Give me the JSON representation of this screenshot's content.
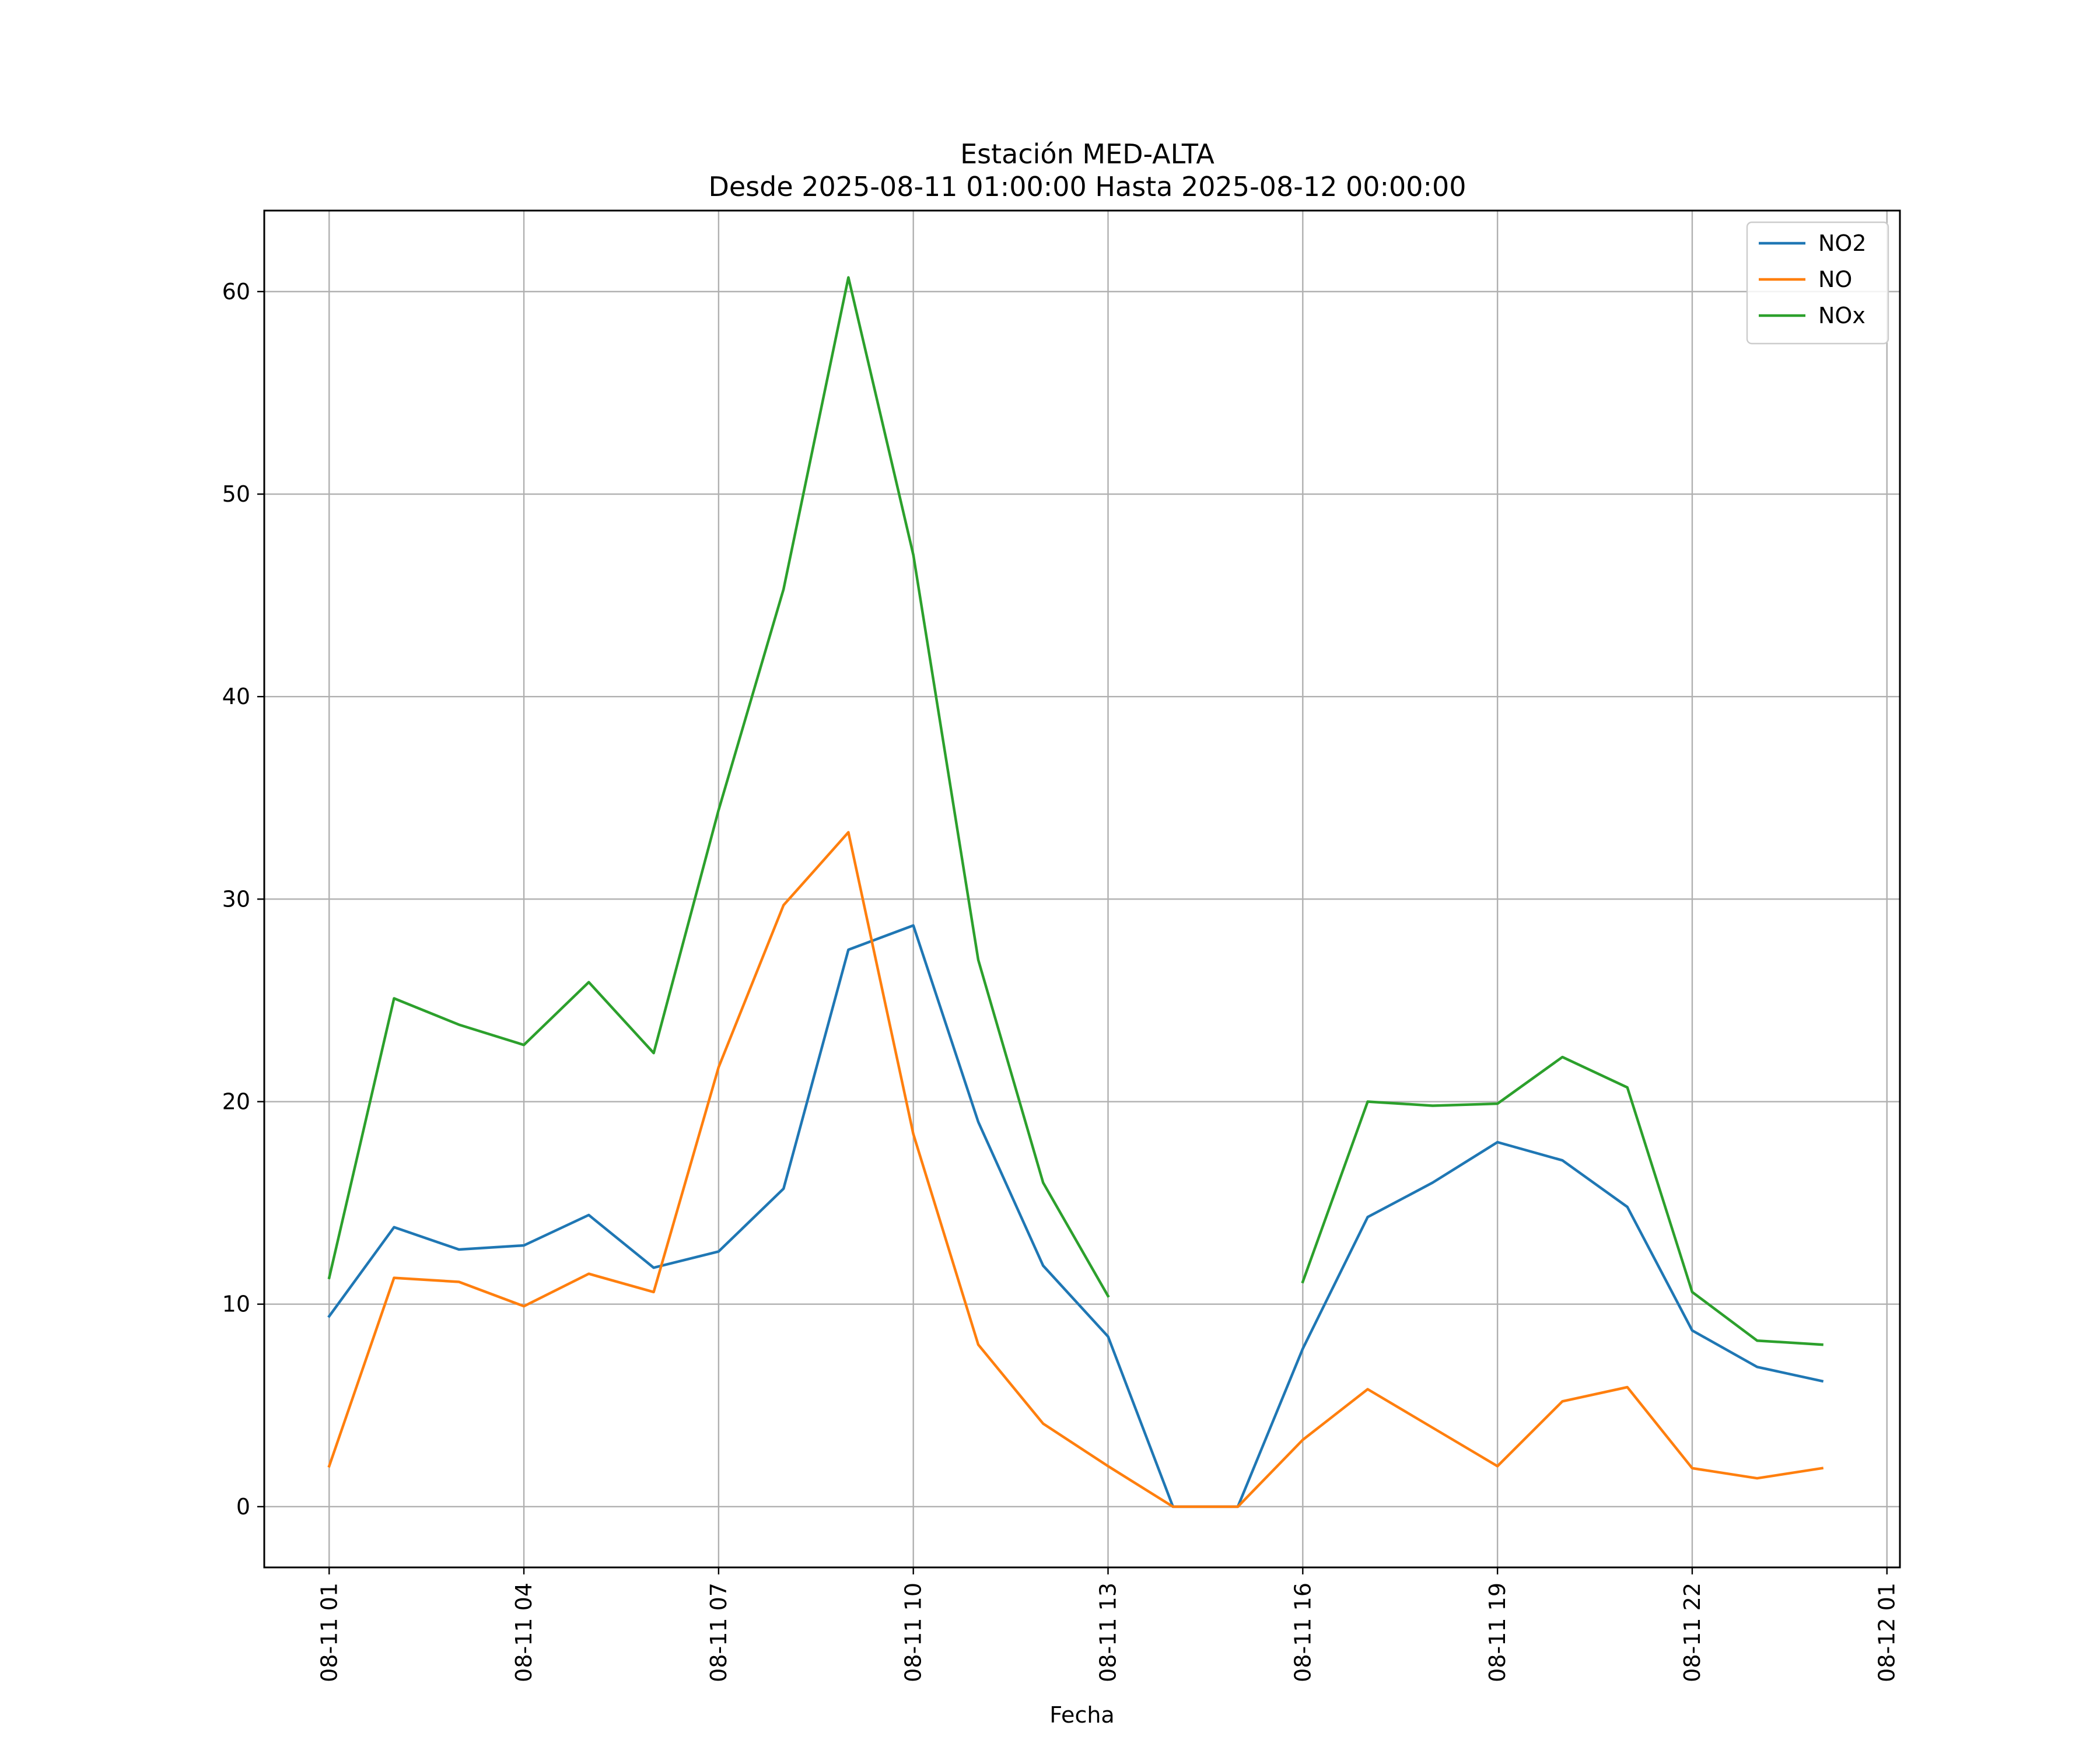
{
  "chart_data": {
    "type": "line",
    "title": "Estación MED-ALTA",
    "subtitle": "Desde 2025-08-11 01:00:00 Hasta 2025-08-12 00:00:00",
    "xlabel": "Fecha",
    "ylabel": "",
    "ylim": [
      -3,
      64
    ],
    "xlim": [
      "2025-08-11 00:00",
      "2025-08-12 01:12"
    ],
    "grid": true,
    "legend_position": "top-right",
    "x": [
      "2025-08-11 01:00",
      "2025-08-11 02:00",
      "2025-08-11 03:00",
      "2025-08-11 04:00",
      "2025-08-11 05:00",
      "2025-08-11 06:00",
      "2025-08-11 07:00",
      "2025-08-11 08:00",
      "2025-08-11 09:00",
      "2025-08-11 10:00",
      "2025-08-11 11:00",
      "2025-08-11 12:00",
      "2025-08-11 13:00",
      "2025-08-11 14:00",
      "2025-08-11 15:00",
      "2025-08-11 16:00",
      "2025-08-11 17:00",
      "2025-08-11 18:00",
      "2025-08-11 19:00",
      "2025-08-11 20:00",
      "2025-08-11 21:00",
      "2025-08-11 22:00",
      "2025-08-11 23:00",
      "2025-08-12 00:00"
    ],
    "x_ticks": [
      {
        "value": "2025-08-11 01:00",
        "label": "08-11 01"
      },
      {
        "value": "2025-08-11 04:00",
        "label": "08-11 04"
      },
      {
        "value": "2025-08-11 07:00",
        "label": "08-11 07"
      },
      {
        "value": "2025-08-11 10:00",
        "label": "08-11 10"
      },
      {
        "value": "2025-08-11 13:00",
        "label": "08-11 13"
      },
      {
        "value": "2025-08-11 16:00",
        "label": "08-11 16"
      },
      {
        "value": "2025-08-11 19:00",
        "label": "08-11 19"
      },
      {
        "value": "2025-08-11 22:00",
        "label": "08-11 22"
      },
      {
        "value": "2025-08-12 01:00",
        "label": "08-12 01"
      }
    ],
    "y_ticks": [
      0,
      10,
      20,
      30,
      40,
      50,
      60
    ],
    "series": [
      {
        "name": "NO2",
        "color": "#1f77b4",
        "values": [
          9.4,
          13.8,
          12.7,
          12.9,
          14.4,
          11.8,
          12.6,
          15.7,
          27.5,
          28.7,
          19.0,
          11.9,
          8.4,
          0.0,
          0.0,
          7.8,
          14.3,
          16.0,
          18.0,
          17.1,
          14.8,
          8.7,
          6.9,
          6.2
        ]
      },
      {
        "name": "NO",
        "color": "#ff7f0e",
        "values": [
          2.0,
          11.3,
          11.1,
          9.9,
          11.5,
          10.6,
          21.7,
          29.7,
          33.3,
          18.4,
          8.0,
          4.1,
          2.0,
          0.0,
          0.0,
          3.3,
          5.8,
          3.9,
          2.0,
          5.2,
          5.9,
          1.9,
          1.4,
          1.9
        ]
      },
      {
        "name": "NOx",
        "color": "#2ca02c",
        "values": [
          11.3,
          25.1,
          23.8,
          22.8,
          25.9,
          22.4,
          34.4,
          45.3,
          60.7,
          47.0,
          27.0,
          16.0,
          10.4,
          null,
          null,
          11.1,
          20.0,
          19.8,
          19.9,
          22.2,
          20.7,
          10.6,
          8.2,
          8.0
        ]
      }
    ]
  }
}
